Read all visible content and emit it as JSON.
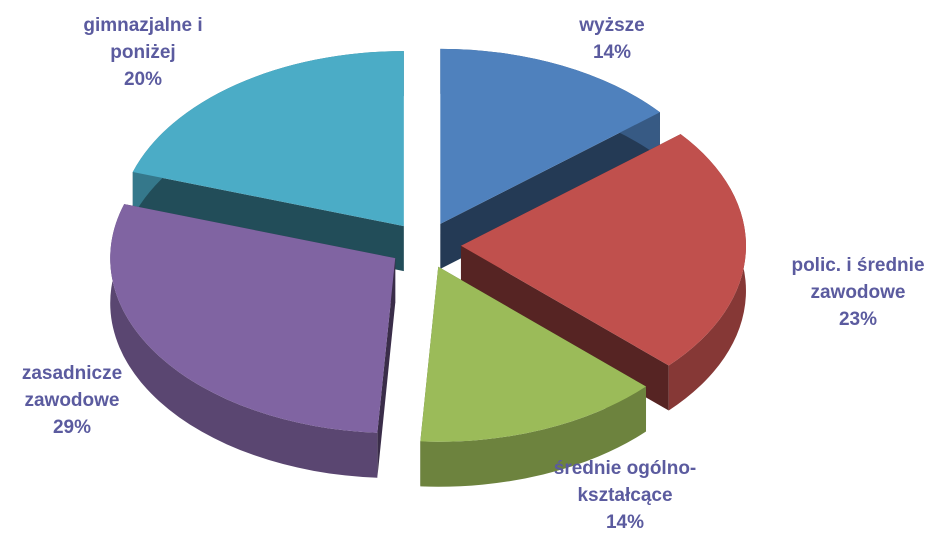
{
  "chart_data": {
    "type": "pie",
    "categories": [
      "wyższe",
      "polic. i średnie zawodowe",
      "średnie ogólno-kształcące",
      "zasadnicze zawodowe",
      "gimnazjalne i poniżej"
    ],
    "values": [
      14,
      23,
      14,
      29,
      20
    ],
    "value_labels": [
      "14%",
      "23%",
      "14%",
      "29%",
      "20%"
    ],
    "colors": [
      "#4f81bd",
      "#c0504d",
      "#9bbb59",
      "#8064a2",
      "#4bacc6"
    ]
  }
}
